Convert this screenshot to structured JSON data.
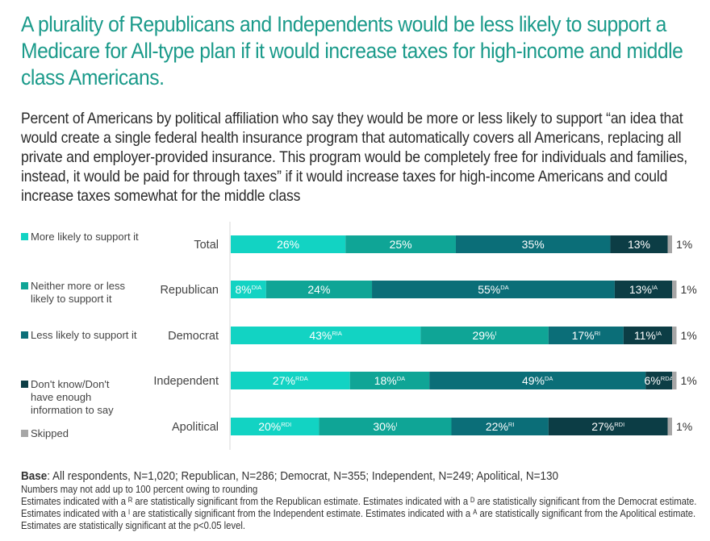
{
  "title": "A plurality of Republicans and Independents would be less likely to support a Medicare for All-type plan if it would increase taxes for high-income and middle class Americans.",
  "subtitle": "Percent of Americans by political affiliation who say they would be more or less likely to support “an idea that would create a single federal health insurance program that automatically covers all Americans, replacing all private and employer-provided insurance. This program would be completely free for individuals and families, instead, it would be paid for through taxes” if it would increase taxes for high-income Americans and could increase taxes somewhat for the middle class",
  "footer": {
    "base_label": "Base",
    "base_text": ": All respondents, N=1,020; Republican, N=286; Democrat, N=355; Independent, N=249; Apolitical, N=130",
    "rounding_note": "Numbers may not add up to 100 percent owing to rounding",
    "significance_note": "Estimates indicated with a ᴿ are statistically significant from the Republican estimate. Estimates indicated with a ᴰ are statistically significant from the Democrat estimate. Estimates indicated with a ᴵ are statistically significant from the Independent estimate. Estimates indicated with a ᴬ are statistically significant from the Apolitical estimate. Estimates are statistically significant at the p<0.05 level."
  },
  "chart_data": {
    "type": "bar",
    "orientation": "horizontal",
    "stacked": true,
    "title": "",
    "xlabel": "",
    "ylabel": "",
    "xlim": [
      0,
      100
    ],
    "grid": false,
    "legend_position": "left",
    "categories": [
      "Total",
      "Republican",
      "Democrat",
      "Independent",
      "Apolitical"
    ],
    "series": [
      {
        "name": "More likely to support it",
        "color": "#12d3c3",
        "values": [
          26,
          8,
          43,
          27,
          20
        ],
        "superscripts": [
          "",
          "DIA",
          "RIA",
          "RDA",
          "RDI"
        ]
      },
      {
        "name": "Neither more or less likely to support it",
        "color": "#0fa596",
        "values": [
          25,
          24,
          29,
          18,
          30
        ],
        "superscripts": [
          "",
          "",
          "I",
          "DA",
          "I"
        ]
      },
      {
        "name": "Less likely to support it",
        "color": "#0b6e78",
        "values": [
          35,
          55,
          17,
          49,
          22
        ],
        "superscripts": [
          "",
          "DA",
          "RI",
          "DA",
          "RI"
        ]
      },
      {
        "name": "Don't know/Don't have enough information to say",
        "color": "#0c3d45",
        "values": [
          13,
          13,
          11,
          6,
          27
        ],
        "superscripts": [
          "",
          "IA",
          "IA",
          "RDA",
          "RDI"
        ]
      },
      {
        "name": "Skipped",
        "color": "#a6a6a6",
        "values": [
          1,
          1,
          1,
          1,
          1
        ],
        "superscripts": [
          "",
          "",
          "",
          "",
          ""
        ],
        "label_outside": true
      }
    ]
  }
}
